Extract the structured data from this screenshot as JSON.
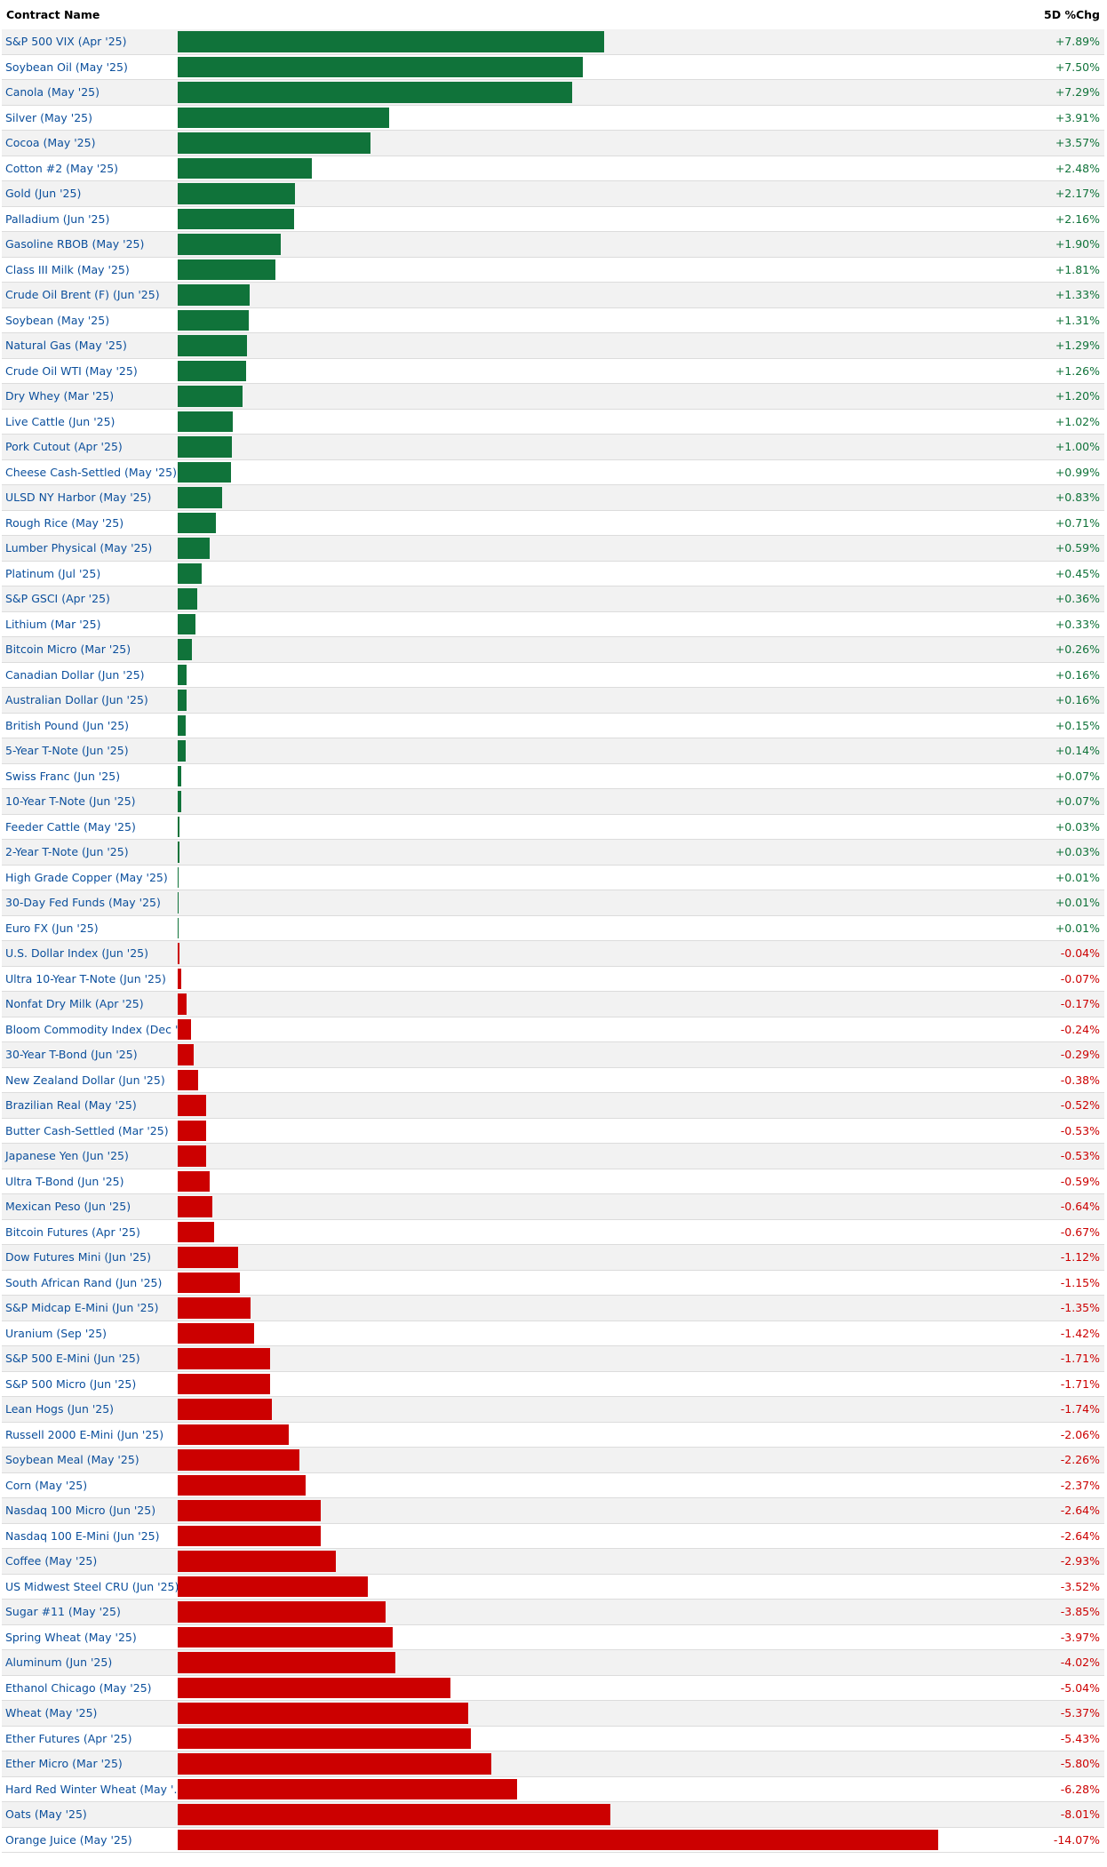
{
  "header": {
    "name_label": "Contract Name",
    "change_label": "5D %Chg"
  },
  "colors": {
    "positive": "#10733a",
    "negative": "#cc0000",
    "name_text": "#0b4f9c",
    "row_alt": "#f2f2f2",
    "grid": "#dcdcdc"
  },
  "chart_data": {
    "type": "bar",
    "orientation": "horizontal",
    "title": "",
    "xlabel": "5D %Chg",
    "ylabel": "Contract Name",
    "grid": true,
    "categories": [
      "S&P 500 VIX (Apr '25)",
      "Soybean Oil (May '25)",
      "Canola (May '25)",
      "Silver (May '25)",
      "Cocoa (May '25)",
      "Cotton #2 (May '25)",
      "Gold (Jun '25)",
      "Palladium (Jun '25)",
      "Gasoline RBOB (May '25)",
      "Class III Milk (May '25)",
      "Crude Oil Brent (F) (Jun '25)",
      "Soybean (May '25)",
      "Natural Gas (May '25)",
      "Crude Oil WTI (May '25)",
      "Dry Whey (Mar '25)",
      "Live Cattle (Jun '25)",
      "Pork Cutout (Apr '25)",
      "Cheese Cash-Settled (May '25)",
      "ULSD NY Harbor (May '25)",
      "Rough Rice (May '25)",
      "Lumber Physical (May '25)",
      "Platinum (Jul '25)",
      "S&P GSCI (Apr '25)",
      "Lithium (Mar '25)",
      "Bitcoin Micro (Mar '25)",
      "Canadian Dollar (Jun '25)",
      "Australian Dollar (Jun '25)",
      "British Pound (Jun '25)",
      "5-Year T-Note (Jun '25)",
      "Swiss Franc (Jun '25)",
      "10-Year T-Note (Jun '25)",
      "Feeder Cattle (May '25)",
      "2-Year T-Note (Jun '25)",
      "High Grade Copper (May '25)",
      "30-Day Fed Funds (May '25)",
      "Euro FX (Jun '25)",
      "U.S. Dollar Index (Jun '25)",
      "Ultra 10-Year T-Note (Jun '25)",
      "Nonfat Dry Milk (Apr '25)",
      "Bloom Commodity Index (Dec '…",
      "30-Year T-Bond (Jun '25)",
      "New Zealand Dollar (Jun '25)",
      "Brazilian Real (May '25)",
      "Butter Cash-Settled (Mar '25)",
      "Japanese Yen (Jun '25)",
      "Ultra T-Bond (Jun '25)",
      "Mexican Peso (Jun '25)",
      "Bitcoin Futures (Apr '25)",
      "Dow Futures Mini (Jun '25)",
      "South African Rand (Jun '25)",
      "S&P Midcap E-Mini (Jun '25)",
      "Uranium (Sep '25)",
      "S&P 500 E-Mini (Jun '25)",
      "S&P 500 Micro (Jun '25)",
      "Lean Hogs (Jun '25)",
      "Russell 2000 E-Mini (Jun '25)",
      "Soybean Meal (May '25)",
      "Corn (May '25)",
      "Nasdaq 100 Micro (Jun '25)",
      "Nasdaq 100 E-Mini (Jun '25)",
      "Coffee (May '25)",
      "US Midwest Steel CRU (Jun '25)",
      "Sugar #11 (May '25)",
      "Spring Wheat (May '25)",
      "Aluminum (Jun '25)",
      "Ethanol Chicago (May '25)",
      "Wheat (May '25)",
      "Ether Futures (Apr '25)",
      "Ether Micro (Mar '25)",
      "Hard Red Winter Wheat (May '…",
      "Oats (May '25)",
      "Orange Juice (May '25)"
    ],
    "values": [
      7.89,
      7.5,
      7.29,
      3.91,
      3.57,
      2.48,
      2.17,
      2.16,
      1.9,
      1.81,
      1.33,
      1.31,
      1.29,
      1.26,
      1.2,
      1.02,
      1.0,
      0.99,
      0.83,
      0.71,
      0.59,
      0.45,
      0.36,
      0.33,
      0.26,
      0.16,
      0.16,
      0.15,
      0.14,
      0.07,
      0.07,
      0.03,
      0.03,
      0.01,
      0.01,
      0.01,
      -0.04,
      -0.07,
      -0.17,
      -0.24,
      -0.29,
      -0.38,
      -0.52,
      -0.53,
      -0.53,
      -0.59,
      -0.64,
      -0.67,
      -1.12,
      -1.15,
      -1.35,
      -1.42,
      -1.71,
      -1.71,
      -1.74,
      -2.06,
      -2.26,
      -2.37,
      -2.64,
      -2.64,
      -2.93,
      -3.52,
      -3.85,
      -3.97,
      -4.02,
      -5.04,
      -5.37,
      -5.43,
      -5.8,
      -6.28,
      -8.01,
      -14.07
    ],
    "labels": [
      "+7.89%",
      "+7.50%",
      "+7.29%",
      "+3.91%",
      "+3.57%",
      "+2.48%",
      "+2.17%",
      "+2.16%",
      "+1.90%",
      "+1.81%",
      "+1.33%",
      "+1.31%",
      "+1.29%",
      "+1.26%",
      "+1.20%",
      "+1.02%",
      "+1.00%",
      "+0.99%",
      "+0.83%",
      "+0.71%",
      "+0.59%",
      "+0.45%",
      "+0.36%",
      "+0.33%",
      "+0.26%",
      "+0.16%",
      "+0.16%",
      "+0.15%",
      "+0.14%",
      "+0.07%",
      "+0.07%",
      "+0.03%",
      "+0.03%",
      "+0.01%",
      "+0.01%",
      "+0.01%",
      "-0.04%",
      "-0.07%",
      "-0.17%",
      "-0.24%",
      "-0.29%",
      "-0.38%",
      "-0.52%",
      "-0.53%",
      "-0.53%",
      "-0.59%",
      "-0.64%",
      "-0.67%",
      "-1.12%",
      "-1.15%",
      "-1.35%",
      "-1.42%",
      "-1.71%",
      "-1.71%",
      "-1.74%",
      "-2.06%",
      "-2.26%",
      "-2.37%",
      "-2.64%",
      "-2.64%",
      "-2.93%",
      "-3.52%",
      "-3.85%",
      "-3.97%",
      "-4.02%",
      "-5.04%",
      "-5.37%",
      "-5.43%",
      "-5.80%",
      "-6.28%",
      "-8.01%",
      "-14.07%"
    ]
  }
}
